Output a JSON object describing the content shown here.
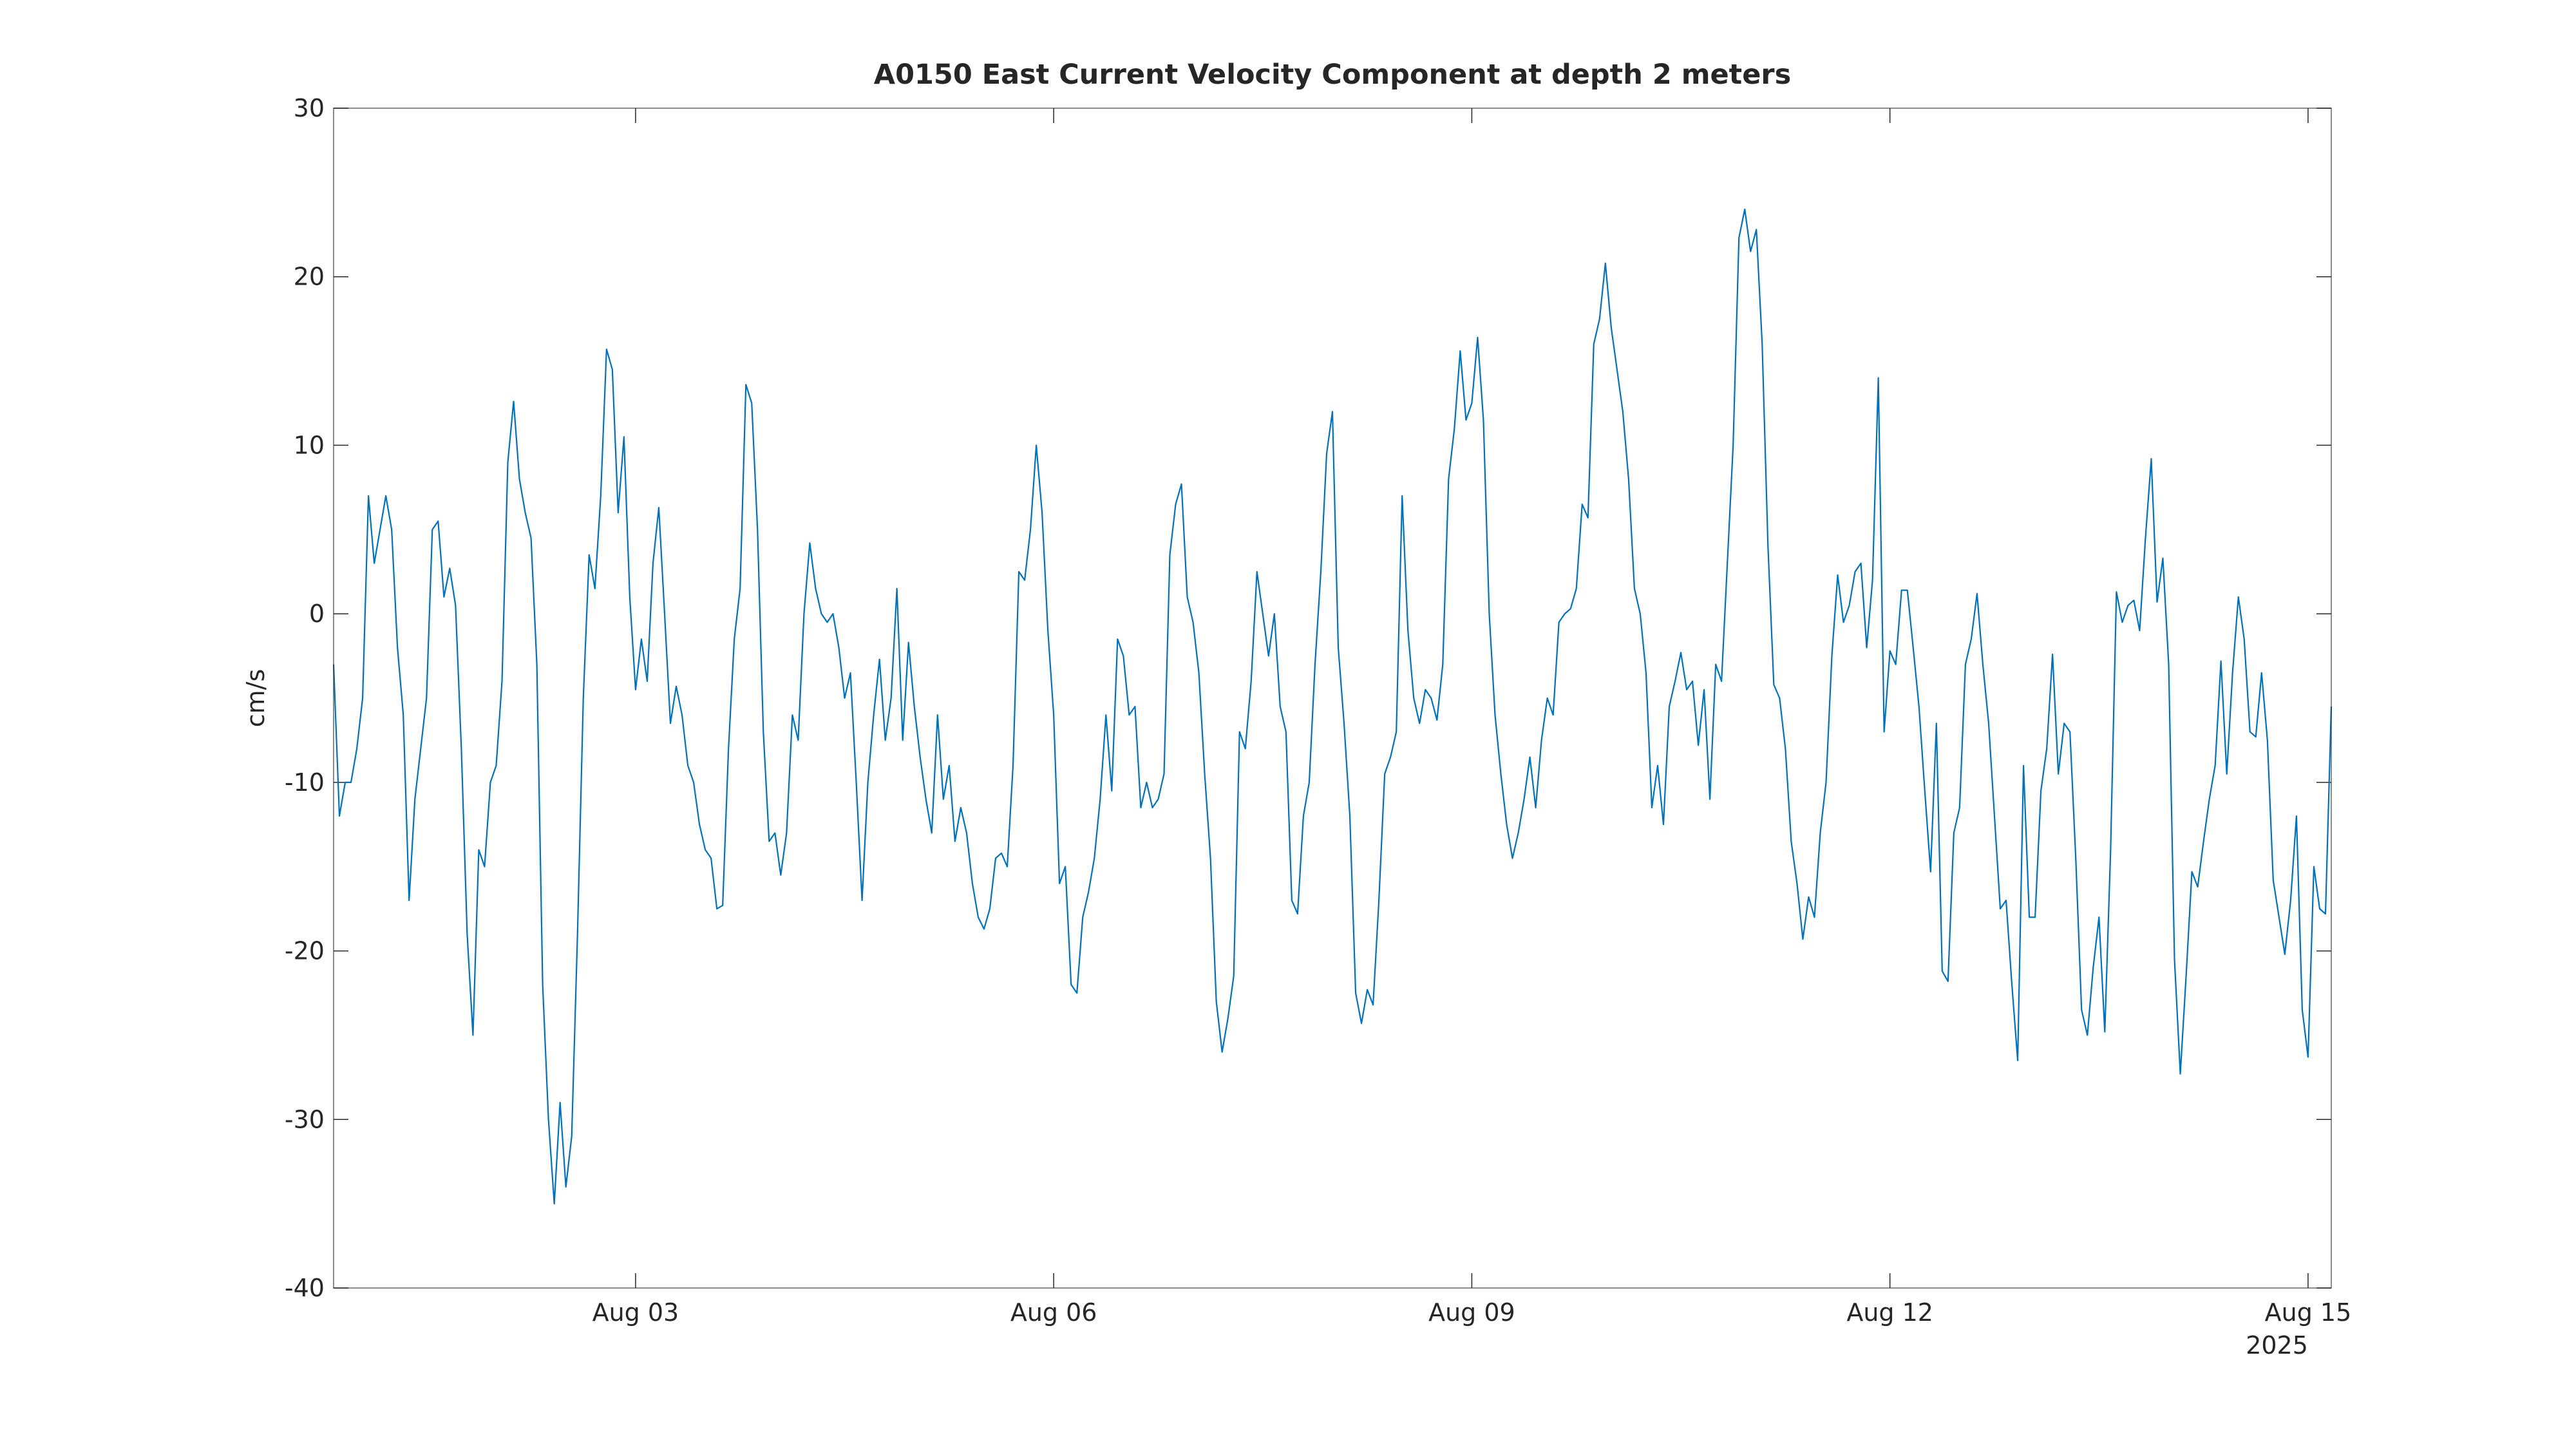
{
  "chart_data": {
    "type": "line",
    "title": "A0150 East Current Velocity Component at depth 2 meters",
    "ylabel": "cm/s",
    "x_axis_secondary_label": "2025",
    "color": "#0072bd",
    "ylim": [
      -40,
      30
    ],
    "yticks": [
      -40,
      -30,
      -20,
      -10,
      0,
      10,
      20,
      30
    ],
    "xlim": [
      "2025-07-31T20:00",
      "2025-08-15T04:00"
    ],
    "xticks": [
      {
        "value": "2025-08-03T00:00",
        "label": "Aug 03"
      },
      {
        "value": "2025-08-06T00:00",
        "label": "Aug 06"
      },
      {
        "value": "2025-08-09T00:00",
        "label": "Aug 09"
      },
      {
        "value": "2025-08-12T00:00",
        "label": "Aug 12"
      },
      {
        "value": "2025-08-15T00:00",
        "label": "Aug 15"
      }
    ],
    "x": [
      "2025-07-31T20:00",
      "2025-07-31T21:00",
      "2025-07-31T22:00",
      "2025-07-31T23:00",
      "2025-08-01T00:00",
      "2025-08-01T01:00",
      "2025-08-01T02:00",
      "2025-08-01T03:00",
      "2025-08-01T04:00",
      "2025-08-01T05:00",
      "2025-08-01T06:00",
      "2025-08-01T07:00",
      "2025-08-01T08:00",
      "2025-08-01T09:00",
      "2025-08-01T10:00",
      "2025-08-01T11:00",
      "2025-08-01T12:00",
      "2025-08-01T13:00",
      "2025-08-01T14:00",
      "2025-08-01T15:00",
      "2025-08-01T16:00",
      "2025-08-01T17:00",
      "2025-08-01T18:00",
      "2025-08-01T19:00",
      "2025-08-01T20:00",
      "2025-08-01T21:00",
      "2025-08-01T22:00",
      "2025-08-01T23:00",
      "2025-08-02T00:00",
      "2025-08-02T01:00",
      "2025-08-02T02:00",
      "2025-08-02T03:00",
      "2025-08-02T04:00",
      "2025-08-02T05:00",
      "2025-08-02T06:00",
      "2025-08-02T07:00",
      "2025-08-02T08:00",
      "2025-08-02T09:00",
      "2025-08-02T10:00",
      "2025-08-02T11:00",
      "2025-08-02T12:00",
      "2025-08-02T13:00",
      "2025-08-02T14:00",
      "2025-08-02T15:00",
      "2025-08-02T16:00",
      "2025-08-02T17:00",
      "2025-08-02T18:00",
      "2025-08-02T19:00",
      "2025-08-02T20:00",
      "2025-08-02T21:00",
      "2025-08-02T22:00",
      "2025-08-02T23:00",
      "2025-08-03T00:00",
      "2025-08-03T01:00",
      "2025-08-03T02:00",
      "2025-08-03T03:00",
      "2025-08-03T04:00",
      "2025-08-03T05:00",
      "2025-08-03T06:00",
      "2025-08-03T07:00",
      "2025-08-03T08:00",
      "2025-08-03T09:00",
      "2025-08-03T10:00",
      "2025-08-03T11:00",
      "2025-08-03T12:00",
      "2025-08-03T13:00",
      "2025-08-03T14:00",
      "2025-08-03T15:00",
      "2025-08-03T16:00",
      "2025-08-03T17:00",
      "2025-08-03T18:00",
      "2025-08-03T19:00",
      "2025-08-03T20:00",
      "2025-08-03T21:00",
      "2025-08-03T22:00",
      "2025-08-03T23:00",
      "2025-08-04T00:00",
      "2025-08-04T01:00",
      "2025-08-04T02:00",
      "2025-08-04T03:00",
      "2025-08-04T04:00",
      "2025-08-04T05:00",
      "2025-08-04T06:00",
      "2025-08-04T07:00",
      "2025-08-04T08:00",
      "2025-08-04T09:00",
      "2025-08-04T10:00",
      "2025-08-04T11:00",
      "2025-08-04T12:00",
      "2025-08-04T13:00",
      "2025-08-04T14:00",
      "2025-08-04T15:00",
      "2025-08-04T16:00",
      "2025-08-04T17:00",
      "2025-08-04T18:00",
      "2025-08-04T19:00",
      "2025-08-04T20:00",
      "2025-08-04T21:00",
      "2025-08-04T22:00",
      "2025-08-04T23:00",
      "2025-08-05T00:00",
      "2025-08-05T01:00",
      "2025-08-05T02:00",
      "2025-08-05T03:00",
      "2025-08-05T04:00",
      "2025-08-05T05:00",
      "2025-08-05T06:00",
      "2025-08-05T07:00",
      "2025-08-05T08:00",
      "2025-08-05T09:00",
      "2025-08-05T10:00",
      "2025-08-05T11:00",
      "2025-08-05T12:00",
      "2025-08-05T13:00",
      "2025-08-05T14:00",
      "2025-08-05T15:00",
      "2025-08-05T16:00",
      "2025-08-05T17:00",
      "2025-08-05T18:00",
      "2025-08-05T19:00",
      "2025-08-05T20:00",
      "2025-08-05T21:00",
      "2025-08-05T22:00",
      "2025-08-05T23:00",
      "2025-08-06T00:00",
      "2025-08-06T01:00",
      "2025-08-06T02:00",
      "2025-08-06T03:00",
      "2025-08-06T04:00",
      "2025-08-06T05:00",
      "2025-08-06T06:00",
      "2025-08-06T07:00",
      "2025-08-06T08:00",
      "2025-08-06T09:00",
      "2025-08-06T10:00",
      "2025-08-06T11:00",
      "2025-08-06T12:00",
      "2025-08-06T13:00",
      "2025-08-06T14:00",
      "2025-08-06T15:00",
      "2025-08-06T16:00",
      "2025-08-06T17:00",
      "2025-08-06T18:00",
      "2025-08-06T19:00",
      "2025-08-06T20:00",
      "2025-08-06T21:00",
      "2025-08-06T22:00",
      "2025-08-06T23:00",
      "2025-08-07T00:00",
      "2025-08-07T01:00",
      "2025-08-07T02:00",
      "2025-08-07T03:00",
      "2025-08-07T04:00",
      "2025-08-07T05:00",
      "2025-08-07T06:00",
      "2025-08-07T07:00",
      "2025-08-07T08:00",
      "2025-08-07T09:00",
      "2025-08-07T10:00",
      "2025-08-07T11:00",
      "2025-08-07T12:00",
      "2025-08-07T13:00",
      "2025-08-07T14:00",
      "2025-08-07T15:00",
      "2025-08-07T16:00",
      "2025-08-07T17:00",
      "2025-08-07T18:00",
      "2025-08-07T19:00",
      "2025-08-07T20:00",
      "2025-08-07T21:00",
      "2025-08-07T22:00",
      "2025-08-07T23:00",
      "2025-08-08T00:00",
      "2025-08-08T01:00",
      "2025-08-08T02:00",
      "2025-08-08T03:00",
      "2025-08-08T04:00",
      "2025-08-08T05:00",
      "2025-08-08T06:00",
      "2025-08-08T07:00",
      "2025-08-08T08:00",
      "2025-08-08T09:00",
      "2025-08-08T10:00",
      "2025-08-08T11:00",
      "2025-08-08T12:00",
      "2025-08-08T13:00",
      "2025-08-08T14:00",
      "2025-08-08T15:00",
      "2025-08-08T16:00",
      "2025-08-08T17:00",
      "2025-08-08T18:00",
      "2025-08-08T19:00",
      "2025-08-08T20:00",
      "2025-08-08T21:00",
      "2025-08-08T22:00",
      "2025-08-08T23:00",
      "2025-08-09T00:00",
      "2025-08-09T01:00",
      "2025-08-09T02:00",
      "2025-08-09T03:00",
      "2025-08-09T04:00",
      "2025-08-09T05:00",
      "2025-08-09T06:00",
      "2025-08-09T07:00",
      "2025-08-09T08:00",
      "2025-08-09T09:00",
      "2025-08-09T10:00",
      "2025-08-09T11:00",
      "2025-08-09T12:00",
      "2025-08-09T13:00",
      "2025-08-09T14:00",
      "2025-08-09T15:00",
      "2025-08-09T16:00",
      "2025-08-09T17:00",
      "2025-08-09T18:00",
      "2025-08-09T19:00",
      "2025-08-09T20:00",
      "2025-08-09T21:00",
      "2025-08-09T22:00",
      "2025-08-09T23:00",
      "2025-08-10T00:00",
      "2025-08-10T01:00",
      "2025-08-10T02:00",
      "2025-08-10T03:00",
      "2025-08-10T04:00",
      "2025-08-10T05:00",
      "2025-08-10T06:00",
      "2025-08-10T07:00",
      "2025-08-10T08:00",
      "2025-08-10T09:00",
      "2025-08-10T10:00",
      "2025-08-10T11:00",
      "2025-08-10T12:00",
      "2025-08-10T13:00",
      "2025-08-10T14:00",
      "2025-08-10T15:00",
      "2025-08-10T16:00",
      "2025-08-10T17:00",
      "2025-08-10T18:00",
      "2025-08-10T19:00",
      "2025-08-10T20:00",
      "2025-08-10T21:00",
      "2025-08-10T22:00",
      "2025-08-10T23:00",
      "2025-08-11T00:00",
      "2025-08-11T01:00",
      "2025-08-11T02:00",
      "2025-08-11T03:00",
      "2025-08-11T04:00",
      "2025-08-11T05:00",
      "2025-08-11T06:00",
      "2025-08-11T07:00",
      "2025-08-11T08:00",
      "2025-08-11T09:00",
      "2025-08-11T10:00",
      "2025-08-11T11:00",
      "2025-08-11T12:00",
      "2025-08-11T13:00",
      "2025-08-11T14:00",
      "2025-08-11T15:00",
      "2025-08-11T16:00",
      "2025-08-11T17:00",
      "2025-08-11T18:00",
      "2025-08-11T19:00",
      "2025-08-11T20:00",
      "2025-08-11T21:00",
      "2025-08-11T22:00",
      "2025-08-11T23:00",
      "2025-08-12T00:00",
      "2025-08-12T01:00",
      "2025-08-12T02:00",
      "2025-08-12T03:00",
      "2025-08-12T04:00",
      "2025-08-12T05:00",
      "2025-08-12T06:00",
      "2025-08-12T07:00",
      "2025-08-12T08:00",
      "2025-08-12T09:00",
      "2025-08-12T10:00",
      "2025-08-12T11:00",
      "2025-08-12T12:00",
      "2025-08-12T13:00",
      "2025-08-12T14:00",
      "2025-08-12T15:00",
      "2025-08-12T16:00",
      "2025-08-12T17:00",
      "2025-08-12T18:00",
      "2025-08-12T19:00",
      "2025-08-12T20:00",
      "2025-08-12T21:00",
      "2025-08-12T22:00",
      "2025-08-12T23:00",
      "2025-08-13T00:00",
      "2025-08-13T01:00",
      "2025-08-13T02:00",
      "2025-08-13T03:00",
      "2025-08-13T04:00",
      "2025-08-13T05:00",
      "2025-08-13T06:00",
      "2025-08-13T07:00",
      "2025-08-13T08:00",
      "2025-08-13T09:00",
      "2025-08-13T10:00",
      "2025-08-13T11:00",
      "2025-08-13T12:00",
      "2025-08-13T13:00",
      "2025-08-13T14:00",
      "2025-08-13T15:00",
      "2025-08-13T16:00",
      "2025-08-13T17:00",
      "2025-08-13T18:00",
      "2025-08-13T19:00",
      "2025-08-13T20:00",
      "2025-08-13T21:00",
      "2025-08-13T22:00",
      "2025-08-13T23:00",
      "2025-08-14T00:00",
      "2025-08-14T01:00",
      "2025-08-14T02:00",
      "2025-08-14T03:00",
      "2025-08-14T04:00",
      "2025-08-14T05:00",
      "2025-08-14T06:00",
      "2025-08-14T07:00",
      "2025-08-14T08:00",
      "2025-08-14T09:00",
      "2025-08-14T10:00",
      "2025-08-14T11:00",
      "2025-08-14T12:00",
      "2025-08-14T13:00",
      "2025-08-14T14:00",
      "2025-08-14T15:00",
      "2025-08-14T16:00",
      "2025-08-14T17:00",
      "2025-08-14T18:00",
      "2025-08-14T19:00",
      "2025-08-14T20:00",
      "2025-08-14T21:00",
      "2025-08-14T22:00",
      "2025-08-14T23:00",
      "2025-08-15T00:00",
      "2025-08-15T01:00",
      "2025-08-15T02:00",
      "2025-08-15T03:00",
      "2025-08-15T04:00"
    ],
    "values": [
      -3,
      -12,
      -10,
      -10,
      -8,
      -5,
      7,
      3,
      5,
      7,
      5,
      -2,
      -6,
      -17,
      -11,
      -8,
      -5,
      5,
      5.5,
      1,
      2.7,
      0.5,
      -8,
      -19,
      -25,
      -14,
      -15,
      -10,
      -9,
      -4,
      9,
      12.6,
      8,
      6,
      4.5,
      -3,
      -22,
      -30,
      -35,
      -29,
      -34,
      -31,
      -19,
      -5,
      3.5,
      1.5,
      7,
      15.7,
      14.5,
      6,
      10.5,
      1,
      -4.5,
      -1.5,
      -4,
      3,
      6.3,
      0,
      -6.5,
      -4.3,
      -6,
      -9,
      -10,
      -12.5,
      -14,
      -14.5,
      -17.5,
      -17.3,
      -8,
      -1.5,
      1.5,
      13.6,
      12.5,
      5,
      -7,
      -13.5,
      -13,
      -15.5,
      -13,
      -6,
      -7.5,
      0,
      4.2,
      1.5,
      0,
      -0.5,
      0,
      -2,
      -5,
      -3.5,
      -10,
      -17,
      -10,
      -6,
      -2.7,
      -7.5,
      -5,
      1.5,
      -7.5,
      -1.7,
      -5.5,
      -8.5,
      -11,
      -13,
      -6,
      -11,
      -9,
      -13.5,
      -11.5,
      -13,
      -16,
      -18,
      -18.7,
      -17.5,
      -14.5,
      -14.2,
      -15,
      -9,
      2.5,
      2,
      5,
      10,
      6,
      -1,
      -6,
      -16,
      -15,
      -22,
      -22.5,
      -18,
      -16.5,
      -14.5,
      -11,
      -6,
      -10.5,
      -1.5,
      -2.5,
      -6,
      -5.5,
      -11.5,
      -10,
      -11.5,
      -11,
      -9.5,
      3.5,
      6.5,
      7.7,
      1,
      -0.5,
      -3.5,
      -9.5,
      -14.5,
      -23,
      -26,
      -24,
      -21.5,
      -7,
      -8,
      -4,
      2.5,
      0,
      -2.5,
      0,
      -5.5,
      -7,
      -17,
      -17.8,
      -12,
      -10,
      -3,
      2.5,
      9.5,
      12,
      -2,
      -6.5,
      -12,
      -22.5,
      -24.3,
      -22.3,
      -23.2,
      -17,
      -9.5,
      -8.5,
      -7,
      7,
      -1,
      -5,
      -6.5,
      -4.5,
      -5,
      -6.3,
      -3,
      8,
      11,
      15.6,
      11.5,
      12.5,
      16.4,
      11.5,
      0,
      -6,
      -9.5,
      -12.5,
      -14.5,
      -13,
      -11,
      -8.5,
      -11.5,
      -7.5,
      -5,
      -6,
      -0.5,
      0,
      0.3,
      1.5,
      6.5,
      5.7,
      16,
      17.5,
      20.8,
      17,
      14.5,
      12,
      8,
      1.5,
      0,
      -3.5,
      -11.5,
      -9,
      -12.5,
      -5.5,
      -4,
      -2.3,
      -4.5,
      -4,
      -7.8,
      -4.5,
      -11,
      -3,
      -4,
      3,
      10,
      22.3,
      24,
      21.5,
      22.8,
      16,
      4,
      -4.2,
      -5,
      -8,
      -13.5,
      -16,
      -19.3,
      -16.8,
      -18,
      -13,
      -10,
      -2.5,
      2.3,
      -0.5,
      0.5,
      2.5,
      3,
      -2,
      2,
      14,
      -7,
      -2.2,
      -3,
      1.4,
      1.4,
      -2,
      -5.5,
      -10.5,
      -15.3,
      -6.5,
      -21.2,
      -21.8,
      -13,
      -11.5,
      -3,
      -1.5,
      1.2,
      -3,
      -6.5,
      -12,
      -17.5,
      -17,
      -22,
      -26.5,
      -9,
      -18,
      -18,
      -10.5,
      -8,
      -2.4,
      -9.5,
      -6.5,
      -7,
      -14.5,
      -23.5,
      -25,
      -21,
      -18,
      -24.8,
      -14,
      1.3,
      -0.5,
      0.5,
      0.8,
      -1,
      4.5,
      9.2,
      0.7,
      3.3,
      -3,
      -20.5,
      -27.3,
      -21.5,
      -15.3,
      -16.2,
      -13.5,
      -11,
      -9,
      -2.8,
      -9.5,
      -3.5,
      1,
      -1.5,
      -7,
      -7.3,
      -3.5,
      -7.5,
      -15.8,
      -18,
      -20.2,
      -17,
      -12,
      -23.5,
      -26.3,
      -15,
      -17.5,
      -17.8,
      -5.5
    ]
  }
}
